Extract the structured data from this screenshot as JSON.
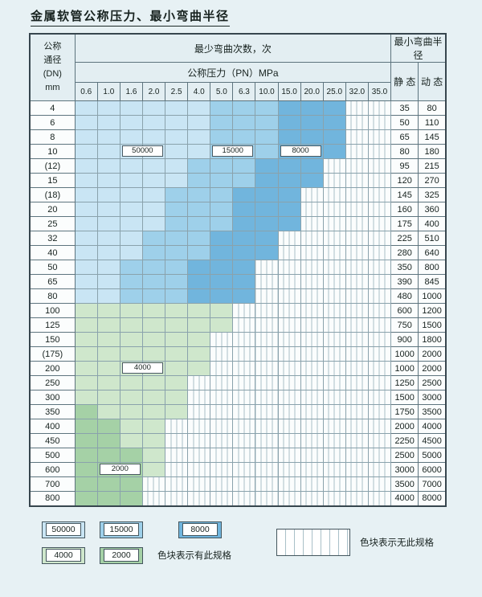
{
  "title": "金属软管公称压力、最小弯曲半径",
  "table": {
    "dn_header_lines": [
      "公称",
      "通径",
      "(DN)",
      "mm"
    ],
    "bend_times_header": "最少弯曲次数，次",
    "pressure_header": "公称压力（PN）MPa",
    "radius_header": "最小弯曲半径",
    "static_header": "静 态",
    "dynamic_header": "动 态"
  },
  "colors": {
    "page_bg": "#e7f1f4",
    "header_bg": "#e3eef2",
    "cell_bg": "#fbfdfd",
    "stripe_line": "#a9c0c8",
    "border_dark": "#37464e",
    "border_light": "#8aa2ac",
    "cycle_colors": {
      "50000": "#c9e5f4",
      "15000": "#9ed0ea",
      "8000": "#71b5dd",
      "4000": "#cfe7cc",
      "2000": "#a5d1a6"
    }
  },
  "grid_labels": [
    {
      "dn": "10",
      "col": 2,
      "text": "50000"
    },
    {
      "dn": "10",
      "col": 6,
      "text": "15000"
    },
    {
      "dn": "10",
      "col": 9,
      "text": "8000"
    },
    {
      "dn": "200",
      "col": 2,
      "text": "4000"
    },
    {
      "dn": "600",
      "col": 1,
      "text": "2000"
    }
  ],
  "legend": {
    "values": [
      50000,
      15000,
      8000,
      4000,
      2000
    ],
    "has_spec_text": "色块表示有此规格",
    "no_spec_text": "色块表示无此规格"
  },
  "chart_data": {
    "type": "table",
    "title": "金属软管公称压力、最小弯曲半径",
    "row_axis": "公称通径(DN) mm",
    "column_group_header": "最少弯曲次数，次",
    "pressure_header": "公称压力（PN）MPa",
    "pressure_columns_MPa": [
      0.6,
      1.0,
      1.6,
      2.0,
      2.5,
      4.0,
      5.0,
      6.3,
      10.0,
      15.0,
      20.0,
      25.0,
      32.0,
      35.0
    ],
    "radius_columns": [
      "静态",
      "动态"
    ],
    "cycle_legend_values": [
      50000,
      15000,
      8000,
      4000,
      2000
    ],
    "rows": [
      {
        "dn": "4",
        "cycles": [
          50000,
          50000,
          50000,
          50000,
          50000,
          50000,
          15000,
          15000,
          15000,
          8000,
          8000,
          8000,
          null,
          null
        ],
        "static": 35,
        "dynamic": 80
      },
      {
        "dn": "6",
        "cycles": [
          50000,
          50000,
          50000,
          50000,
          50000,
          50000,
          15000,
          15000,
          15000,
          8000,
          8000,
          8000,
          null,
          null
        ],
        "static": 50,
        "dynamic": 110
      },
      {
        "dn": "8",
        "cycles": [
          50000,
          50000,
          50000,
          50000,
          50000,
          50000,
          15000,
          15000,
          15000,
          8000,
          8000,
          8000,
          null,
          null
        ],
        "static": 65,
        "dynamic": 145
      },
      {
        "dn": "10",
        "cycles": [
          50000,
          50000,
          50000,
          50000,
          50000,
          50000,
          15000,
          15000,
          15000,
          8000,
          8000,
          8000,
          null,
          null
        ],
        "static": 80,
        "dynamic": 180
      },
      {
        "dn": "(12)",
        "cycles": [
          50000,
          50000,
          50000,
          50000,
          50000,
          15000,
          15000,
          15000,
          8000,
          8000,
          8000,
          null,
          null,
          null
        ],
        "static": 95,
        "dynamic": 215
      },
      {
        "dn": "15",
        "cycles": [
          50000,
          50000,
          50000,
          50000,
          50000,
          15000,
          15000,
          15000,
          8000,
          8000,
          8000,
          null,
          null,
          null
        ],
        "static": 120,
        "dynamic": 270
      },
      {
        "dn": "(18)",
        "cycles": [
          50000,
          50000,
          50000,
          50000,
          15000,
          15000,
          15000,
          8000,
          8000,
          8000,
          null,
          null,
          null,
          null
        ],
        "static": 145,
        "dynamic": 325
      },
      {
        "dn": "20",
        "cycles": [
          50000,
          50000,
          50000,
          50000,
          15000,
          15000,
          15000,
          8000,
          8000,
          8000,
          null,
          null,
          null,
          null
        ],
        "static": 160,
        "dynamic": 360
      },
      {
        "dn": "25",
        "cycles": [
          50000,
          50000,
          50000,
          50000,
          15000,
          15000,
          15000,
          8000,
          8000,
          8000,
          null,
          null,
          null,
          null
        ],
        "static": 175,
        "dynamic": 400
      },
      {
        "dn": "32",
        "cycles": [
          50000,
          50000,
          50000,
          15000,
          15000,
          15000,
          8000,
          8000,
          8000,
          null,
          null,
          null,
          null,
          null
        ],
        "static": 225,
        "dynamic": 510
      },
      {
        "dn": "40",
        "cycles": [
          50000,
          50000,
          50000,
          15000,
          15000,
          15000,
          8000,
          8000,
          8000,
          null,
          null,
          null,
          null,
          null
        ],
        "static": 280,
        "dynamic": 640
      },
      {
        "dn": "50",
        "cycles": [
          50000,
          50000,
          15000,
          15000,
          15000,
          8000,
          8000,
          8000,
          null,
          null,
          null,
          null,
          null,
          null
        ],
        "static": 350,
        "dynamic": 800
      },
      {
        "dn": "65",
        "cycles": [
          50000,
          50000,
          15000,
          15000,
          15000,
          8000,
          8000,
          8000,
          null,
          null,
          null,
          null,
          null,
          null
        ],
        "static": 390,
        "dynamic": 845
      },
      {
        "dn": "80",
        "cycles": [
          50000,
          50000,
          15000,
          15000,
          15000,
          8000,
          8000,
          8000,
          null,
          null,
          null,
          null,
          null,
          null
        ],
        "static": 480,
        "dynamic": 1000
      },
      {
        "dn": "100",
        "cycles": [
          4000,
          4000,
          4000,
          4000,
          4000,
          4000,
          4000,
          null,
          null,
          null,
          null,
          null,
          null,
          null
        ],
        "static": 600,
        "dynamic": 1200
      },
      {
        "dn": "125",
        "cycles": [
          4000,
          4000,
          4000,
          4000,
          4000,
          4000,
          4000,
          null,
          null,
          null,
          null,
          null,
          null,
          null
        ],
        "static": 750,
        "dynamic": 1500
      },
      {
        "dn": "150",
        "cycles": [
          4000,
          4000,
          4000,
          4000,
          4000,
          4000,
          null,
          null,
          null,
          null,
          null,
          null,
          null,
          null
        ],
        "static": 900,
        "dynamic": 1800
      },
      {
        "dn": "(175)",
        "cycles": [
          4000,
          4000,
          4000,
          4000,
          4000,
          4000,
          null,
          null,
          null,
          null,
          null,
          null,
          null,
          null
        ],
        "static": 1000,
        "dynamic": 2000
      },
      {
        "dn": "200",
        "cycles": [
          4000,
          4000,
          4000,
          4000,
          4000,
          4000,
          null,
          null,
          null,
          null,
          null,
          null,
          null,
          null
        ],
        "static": 1000,
        "dynamic": 2000
      },
      {
        "dn": "250",
        "cycles": [
          4000,
          4000,
          4000,
          4000,
          4000,
          null,
          null,
          null,
          null,
          null,
          null,
          null,
          null,
          null
        ],
        "static": 1250,
        "dynamic": 2500
      },
      {
        "dn": "300",
        "cycles": [
          4000,
          4000,
          4000,
          4000,
          4000,
          null,
          null,
          null,
          null,
          null,
          null,
          null,
          null,
          null
        ],
        "static": 1500,
        "dynamic": 3000
      },
      {
        "dn": "350",
        "cycles": [
          2000,
          4000,
          4000,
          4000,
          4000,
          null,
          null,
          null,
          null,
          null,
          null,
          null,
          null,
          null
        ],
        "static": 1750,
        "dynamic": 3500
      },
      {
        "dn": "400",
        "cycles": [
          2000,
          2000,
          4000,
          4000,
          null,
          null,
          null,
          null,
          null,
          null,
          null,
          null,
          null,
          null
        ],
        "static": 2000,
        "dynamic": 4000
      },
      {
        "dn": "450",
        "cycles": [
          2000,
          2000,
          4000,
          4000,
          null,
          null,
          null,
          null,
          null,
          null,
          null,
          null,
          null,
          null
        ],
        "static": 2250,
        "dynamic": 4500
      },
      {
        "dn": "500",
        "cycles": [
          2000,
          2000,
          2000,
          4000,
          null,
          null,
          null,
          null,
          null,
          null,
          null,
          null,
          null,
          null
        ],
        "static": 2500,
        "dynamic": 5000
      },
      {
        "dn": "600",
        "cycles": [
          2000,
          2000,
          2000,
          4000,
          null,
          null,
          null,
          null,
          null,
          null,
          null,
          null,
          null,
          null
        ],
        "static": 3000,
        "dynamic": 6000
      },
      {
        "dn": "700",
        "cycles": [
          2000,
          2000,
          2000,
          null,
          null,
          null,
          null,
          null,
          null,
          null,
          null,
          null,
          null,
          null
        ],
        "static": 3500,
        "dynamic": 7000
      },
      {
        "dn": "800",
        "cycles": [
          2000,
          2000,
          2000,
          null,
          null,
          null,
          null,
          null,
          null,
          null,
          null,
          null,
          null,
          null
        ],
        "static": 4000,
        "dynamic": 8000
      }
    ]
  }
}
